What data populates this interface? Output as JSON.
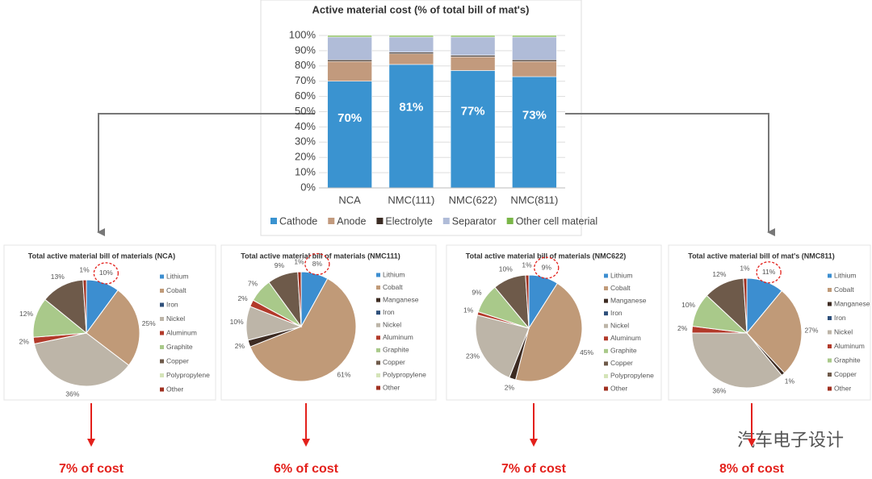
{
  "chart_data": [
    {
      "type": "bar",
      "title": "Active material cost (% of total bill of mat's)",
      "categories": [
        "NCA",
        "NMC(111)",
        "NMC(622)",
        "NMC(811)"
      ],
      "series": [
        {
          "name": "Cathode",
          "color": "#3a93d0",
          "values": [
            70,
            81,
            77,
            73
          ],
          "value_labels": [
            "70%",
            "81%",
            "77%",
            "73%"
          ]
        },
        {
          "name": "Anode",
          "color": "#c29a7d",
          "values": [
            13,
            7,
            9,
            10
          ]
        },
        {
          "name": "Electrolyte",
          "color": "#3b2c24",
          "values": [
            1,
            1,
            1,
            1
          ]
        },
        {
          "name": "Separator",
          "color": "#b0bcd8",
          "values": [
            15,
            10,
            12,
            15
          ]
        },
        {
          "name": "Other cell material",
          "color": "#7ab648",
          "values": [
            1,
            1,
            1,
            1
          ]
        }
      ],
      "stacked": true,
      "ylim": [
        0,
        100
      ],
      "yticks": [
        {
          "value": 0,
          "label": "0%"
        },
        {
          "value": 10,
          "label": "10%"
        },
        {
          "value": 20,
          "label": "20%"
        },
        {
          "value": 30,
          "label": "30%"
        },
        {
          "value": 40,
          "label": "40%"
        },
        {
          "value": 50,
          "label": "50%"
        },
        {
          "value": 60,
          "label": "60%"
        },
        {
          "value": 70,
          "label": "70%"
        },
        {
          "value": 80,
          "label": "80%"
        },
        {
          "value": 90,
          "label": "90%"
        },
        {
          "value": 100,
          "label": "100%"
        }
      ],
      "grid": true,
      "legend": "bottom"
    },
    {
      "type": "pie",
      "title": "Total active material bill of materials (NCA)",
      "labels": [
        "Lithium",
        "Cobalt",
        "Iron",
        "Nickel",
        "Aluminum",
        "Graphite",
        "Copper",
        "Polypropylene",
        "Other"
      ],
      "values": [
        10,
        25,
        0,
        36,
        2,
        12,
        13,
        0,
        1
      ],
      "value_labels": [
        "10%",
        "25%",
        null,
        "36%",
        "2%",
        "12%",
        "13%",
        null,
        "1%"
      ],
      "colors": [
        "#3c8ed0",
        "#c09a78",
        "#2e4f7a",
        "#bdb5a8",
        "#b23a2a",
        "#a9c98a",
        "#6e5a4a",
        "#d4e4b8",
        "#a03020"
      ],
      "annotation": "7% of cost"
    },
    {
      "type": "pie",
      "title": "Total active material bill of materials  (NMC111)",
      "labels": [
        "Lithium",
        "Cobalt",
        "Manganese",
        "Iron",
        "Nickel",
        "Aluminum",
        "Graphite",
        "Copper",
        "Polypropylene",
        "Other"
      ],
      "values": [
        8,
        61,
        2,
        0,
        10,
        2,
        7,
        9,
        0,
        1
      ],
      "value_labels": [
        "8%",
        "61%",
        "2%",
        null,
        "10%",
        "2%",
        "7%",
        "9%",
        null,
        "1%"
      ],
      "colors": [
        "#3c8ed0",
        "#c09a78",
        "#3d2b22",
        "#2e4f7a",
        "#bdb5a8",
        "#b23a2a",
        "#a9c98a",
        "#6e5a4a",
        "#d4e4b8",
        "#a03020"
      ],
      "annotation": "6% of cost"
    },
    {
      "type": "pie",
      "title": "Total active material bill of materials (NMC622)",
      "labels": [
        "Lithium",
        "Cobalt",
        "Manganese",
        "Iron",
        "Nickel",
        "Aluminum",
        "Graphite",
        "Copper",
        "Polypropylene",
        "Other"
      ],
      "values": [
        9,
        45,
        2,
        0,
        23,
        1,
        9,
        10,
        0,
        1
      ],
      "value_labels": [
        "9%",
        "45%",
        "2%",
        null,
        "23%",
        "1%",
        "9%",
        "10%",
        null,
        "1%"
      ],
      "colors": [
        "#3c8ed0",
        "#c09a78",
        "#3d2b22",
        "#2e4f7a",
        "#bdb5a8",
        "#b23a2a",
        "#a9c98a",
        "#6e5a4a",
        "#d4e4b8",
        "#a03020"
      ],
      "annotation": "7% of cost"
    },
    {
      "type": "pie",
      "title": "Total active material bill of mat's (NMC811)",
      "labels": [
        "Lithium",
        "Cobalt",
        "Manganese",
        "Iron",
        "Nickel",
        "Aluminum",
        "Graphite",
        "Copper",
        "Other"
      ],
      "values": [
        11,
        27,
        1,
        0,
        36,
        2,
        10,
        12,
        1
      ],
      "value_labels": [
        "11%",
        "27%",
        "1%",
        null,
        "36%",
        "2%",
        "10%",
        "12%",
        "1%"
      ],
      "colors": [
        "#3c8ed0",
        "#c09a78",
        "#3d2b22",
        "#2e4f7a",
        "#bdb5a8",
        "#b23a2a",
        "#a9c98a",
        "#6e5a4a",
        "#a03020"
      ],
      "annotation": "8% of cost"
    }
  ],
  "watermark": "汽车电子设计"
}
